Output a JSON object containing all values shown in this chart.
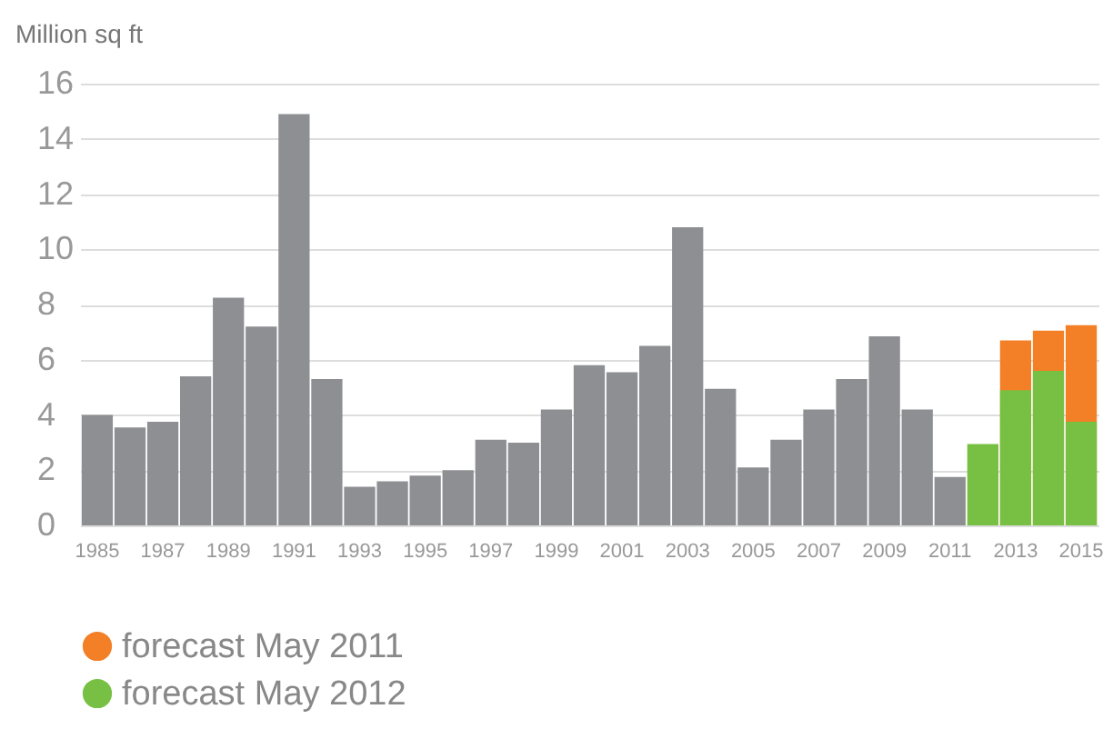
{
  "chart_data": {
    "type": "bar",
    "ylabel": "Million sq ft",
    "categories": [
      "1985",
      null,
      "1987",
      null,
      "1989",
      null,
      "1991",
      null,
      "1993",
      null,
      "1995",
      null,
      "1997",
      null,
      "1999",
      null,
      "2001",
      null,
      "2003",
      null,
      "2005",
      null,
      "2007",
      null,
      "2009",
      null,
      "2011",
      null,
      "2013",
      null,
      "2015"
    ],
    "series": [
      {
        "color": "#8e8f93",
        "values": [
          4.0,
          3.55,
          3.75,
          5.4,
          8.25,
          7.2,
          14.9,
          5.3,
          1.4,
          1.6,
          1.8,
          2.0,
          3.1,
          3.0,
          4.2,
          5.8,
          5.55,
          6.5,
          10.8,
          4.95,
          2.1,
          3.1,
          4.2,
          5.3,
          6.85,
          4.2,
          1.75,
          null,
          null,
          null,
          null
        ]
      },
      {
        "name": "forecast May 2011",
        "color": "#f37f26",
        "values": [
          null,
          null,
          null,
          null,
          null,
          null,
          null,
          null,
          null,
          null,
          null,
          null,
          null,
          null,
          null,
          null,
          null,
          null,
          null,
          null,
          null,
          null,
          null,
          null,
          null,
          null,
          null,
          null,
          6.7,
          7.05,
          7.25
        ]
      },
      {
        "name": "forecast May 2012",
        "color": "#77c043",
        "values": [
          null,
          null,
          null,
          null,
          null,
          null,
          null,
          null,
          null,
          null,
          null,
          null,
          null,
          null,
          null,
          null,
          null,
          null,
          null,
          null,
          null,
          null,
          null,
          null,
          null,
          null,
          null,
          2.95,
          4.9,
          5.6,
          3.75
        ]
      }
    ],
    "ylim": [
      0,
      16
    ],
    "yticks": [
      0,
      2,
      4,
      6,
      8,
      10,
      12,
      14,
      16
    ],
    "grid": "y",
    "legend": "bottom"
  }
}
